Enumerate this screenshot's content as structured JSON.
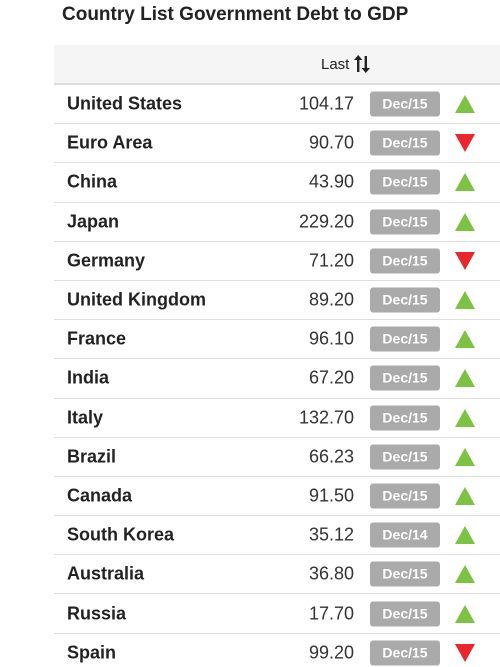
{
  "title": "Country List Government Debt to GDP",
  "header": {
    "last_label": "Last"
  },
  "colors": {
    "up": "#7cc243",
    "down": "#e8262b",
    "badge": "#aaaaaa"
  },
  "rows": [
    {
      "country": "United States",
      "value": "104.17",
      "date": "Dec/15",
      "trend": "up"
    },
    {
      "country": "Euro Area",
      "value": "90.70",
      "date": "Dec/15",
      "trend": "down"
    },
    {
      "country": "China",
      "value": "43.90",
      "date": "Dec/15",
      "trend": "up"
    },
    {
      "country": "Japan",
      "value": "229.20",
      "date": "Dec/15",
      "trend": "up"
    },
    {
      "country": "Germany",
      "value": "71.20",
      "date": "Dec/15",
      "trend": "down"
    },
    {
      "country": "United Kingdom",
      "value": "89.20",
      "date": "Dec/15",
      "trend": "up"
    },
    {
      "country": "France",
      "value": "96.10",
      "date": "Dec/15",
      "trend": "up"
    },
    {
      "country": "India",
      "value": "67.20",
      "date": "Dec/15",
      "trend": "up"
    },
    {
      "country": "Italy",
      "value": "132.70",
      "date": "Dec/15",
      "trend": "up"
    },
    {
      "country": "Brazil",
      "value": "66.23",
      "date": "Dec/15",
      "trend": "up"
    },
    {
      "country": "Canada",
      "value": "91.50",
      "date": "Dec/15",
      "trend": "up"
    },
    {
      "country": "South Korea",
      "value": "35.12",
      "date": "Dec/14",
      "trend": "up"
    },
    {
      "country": "Australia",
      "value": "36.80",
      "date": "Dec/15",
      "trend": "up"
    },
    {
      "country": "Russia",
      "value": "17.70",
      "date": "Dec/15",
      "trend": "up"
    },
    {
      "country": "Spain",
      "value": "99.20",
      "date": "Dec/15",
      "trend": "down"
    }
  ]
}
